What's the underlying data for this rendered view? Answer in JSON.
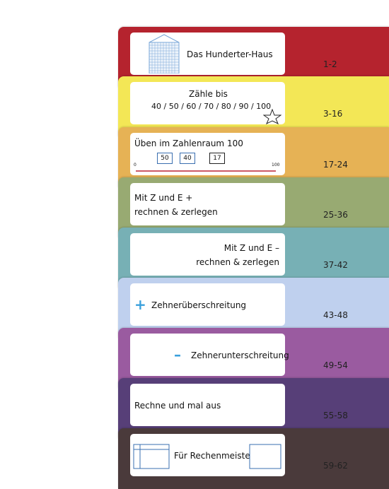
{
  "sections": [
    {
      "title": "Das Hunderter-Haus",
      "pages": "1-2"
    },
    {
      "title": "Zähle bis",
      "subtitle": "40 / 50 / 60 / 70 / 80 / 90 / 100",
      "pages": "3-16"
    },
    {
      "title": "Üben im Zahlenraum 100",
      "boxes": [
        "50",
        "40",
        "17"
      ],
      "scale": [
        "0",
        "100"
      ],
      "pages": "17-24"
    },
    {
      "title": "Mit Z und E +",
      "subtitle": "rechnen & zerlegen",
      "pages": "25-36"
    },
    {
      "title": "Mit Z und E –",
      "subtitle": "rechnen & zerlegen",
      "pages": "37-42"
    },
    {
      "title": "Zehnerüberschreitung",
      "sign": "+",
      "pages": "43-48"
    },
    {
      "title": "Zehnerunterschreitung",
      "sign": "–",
      "pages": "49-54"
    },
    {
      "title": "Rechne und mal aus",
      "pages": "55-58"
    },
    {
      "title": "Für Rechenmeister",
      "pages": "59-62"
    }
  ]
}
